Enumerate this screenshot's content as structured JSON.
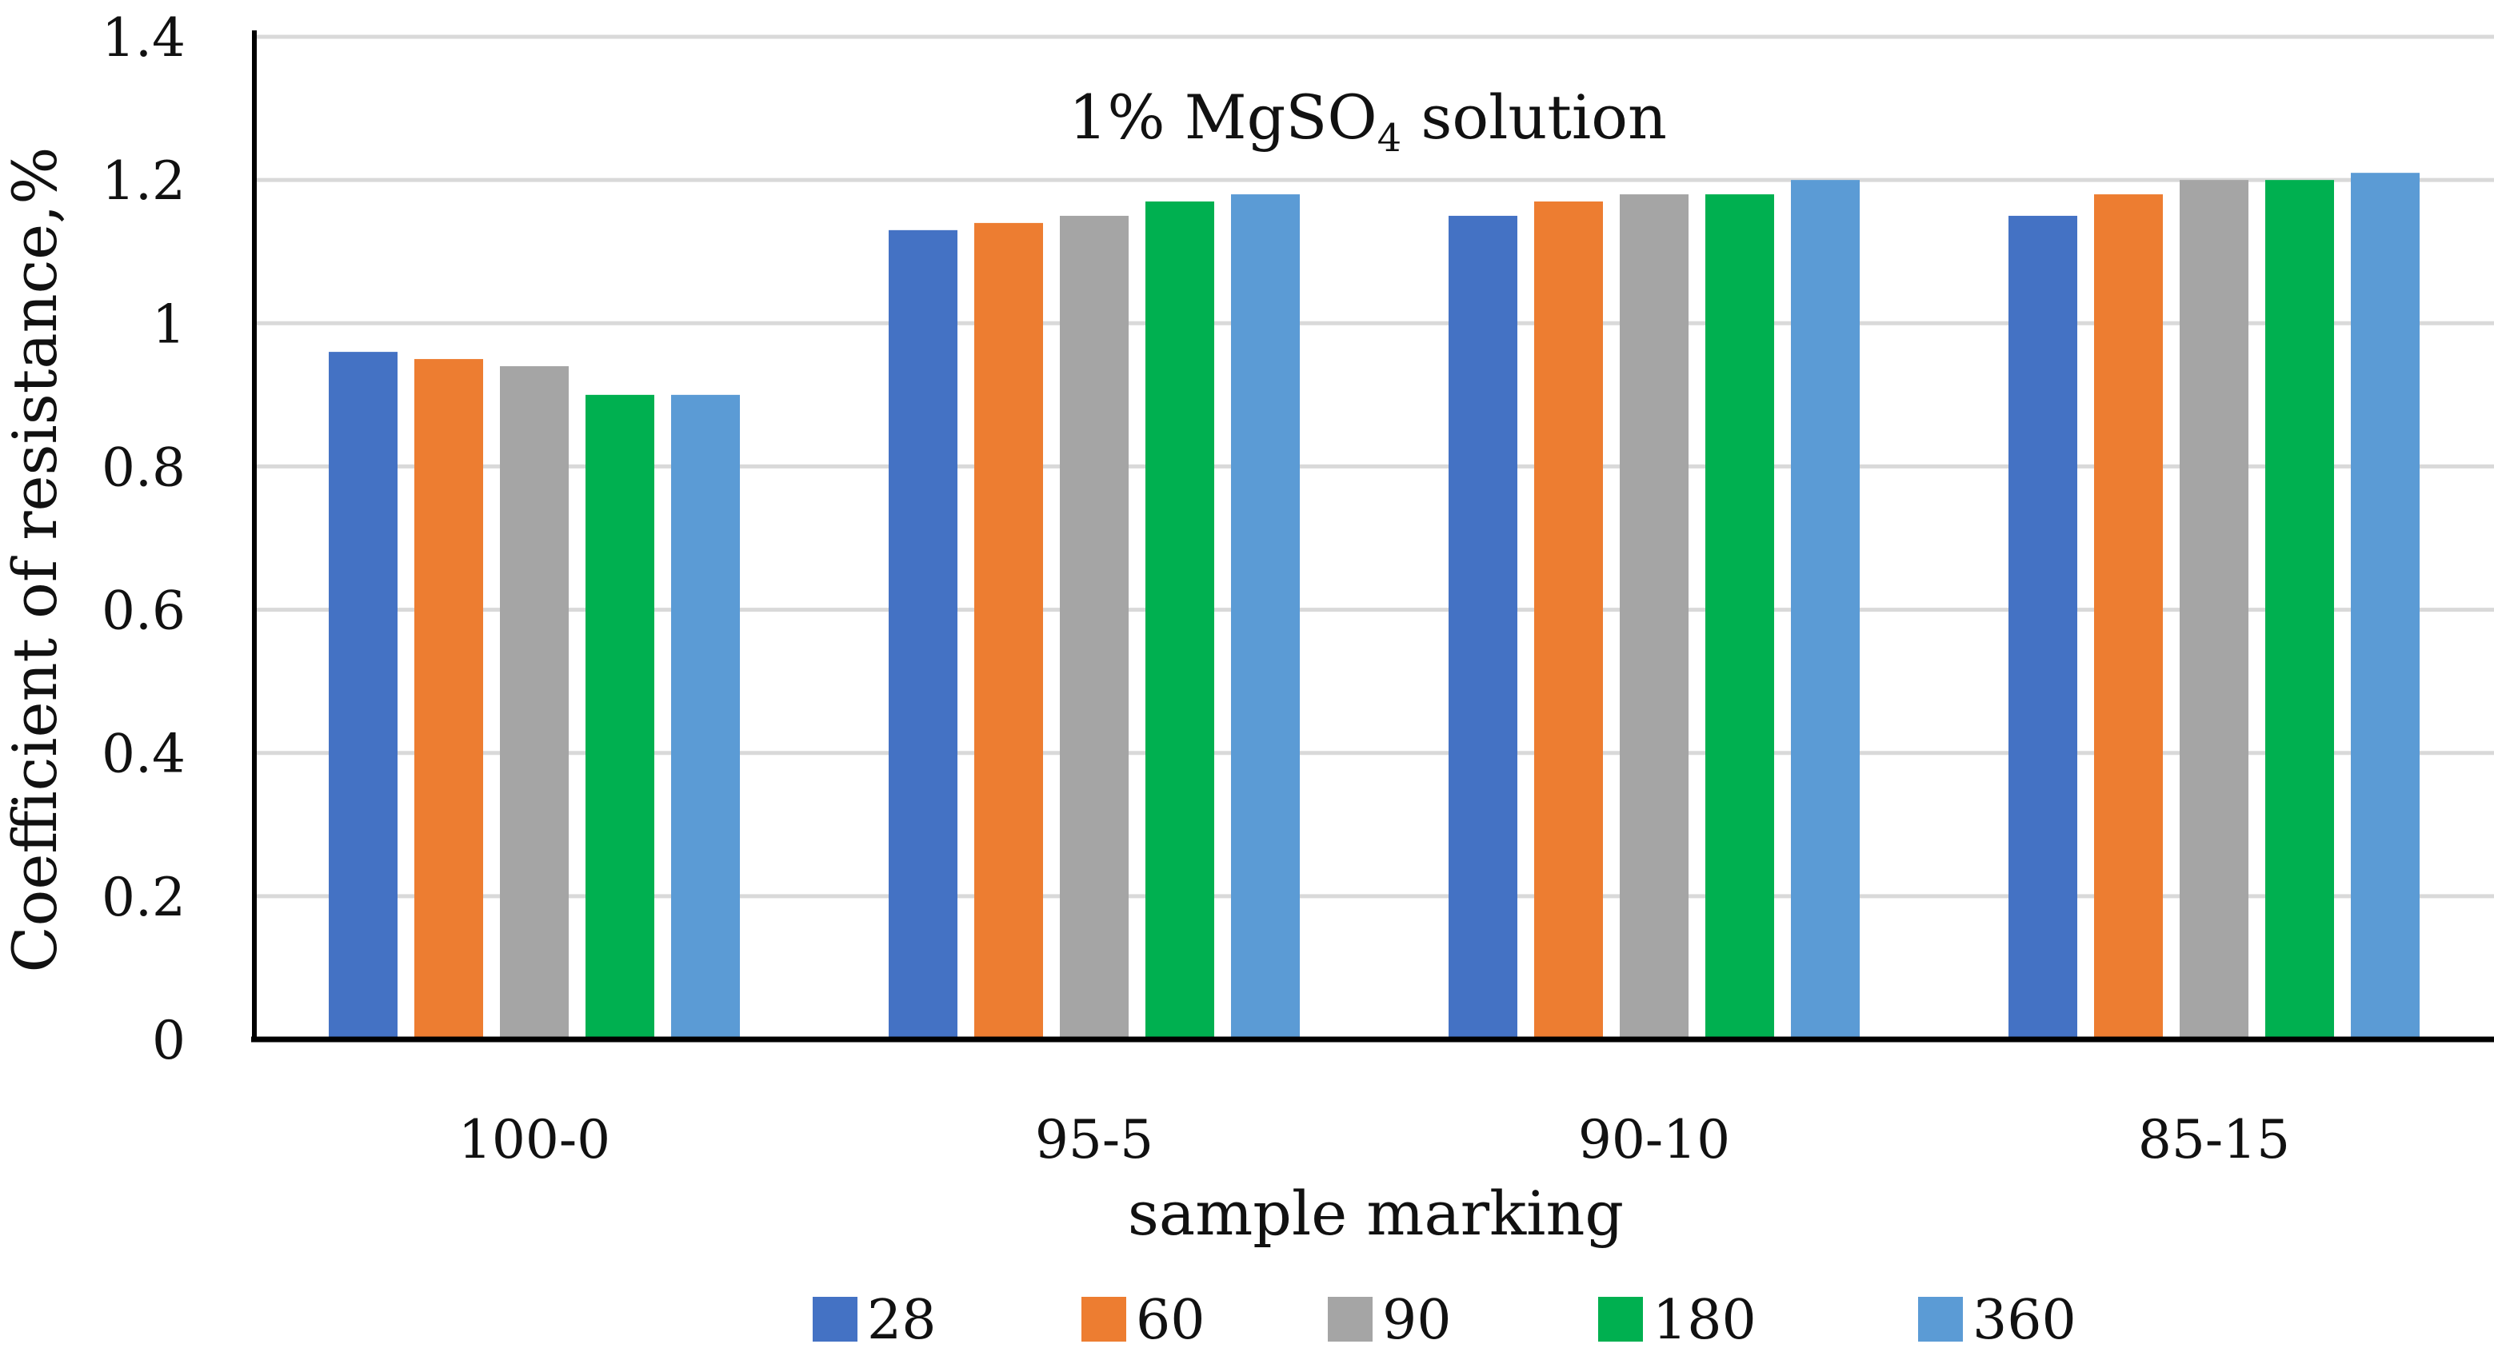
{
  "chart_data": {
    "type": "bar",
    "title_main": "1% MgSO",
    "title_subscript": "4",
    "title_suffix": " solution",
    "xlabel": "sample marking",
    "ylabel": "Coefficient of resistance,%",
    "categories": [
      "100-0",
      "95-5",
      "90-10",
      "85-15"
    ],
    "ylim": [
      0,
      1.4
    ],
    "yticks": [
      0,
      0.2,
      0.4,
      0.6,
      0.8,
      1,
      1.2,
      1.4
    ],
    "ytick_labels": [
      "0",
      "0.2",
      "0.4",
      "0.6",
      "0.8",
      "1",
      "1.2",
      "1.4"
    ],
    "grid": true,
    "legend_position": "bottom",
    "series": [
      {
        "name": "28",
        "color": "#4472C4",
        "values": [
          0.96,
          1.13,
          1.15,
          1.15
        ]
      },
      {
        "name": "60",
        "color": "#ED7D31",
        "values": [
          0.95,
          1.14,
          1.17,
          1.18
        ]
      },
      {
        "name": "90",
        "color": "#A5A5A5",
        "values": [
          0.94,
          1.15,
          1.18,
          1.2
        ]
      },
      {
        "name": "180",
        "color": "#00B050",
        "values": [
          0.9,
          1.17,
          1.18,
          1.2
        ]
      },
      {
        "name": "360",
        "color": "#5B9BD5",
        "values": [
          0.9,
          1.18,
          1.2,
          1.21
        ]
      }
    ]
  }
}
